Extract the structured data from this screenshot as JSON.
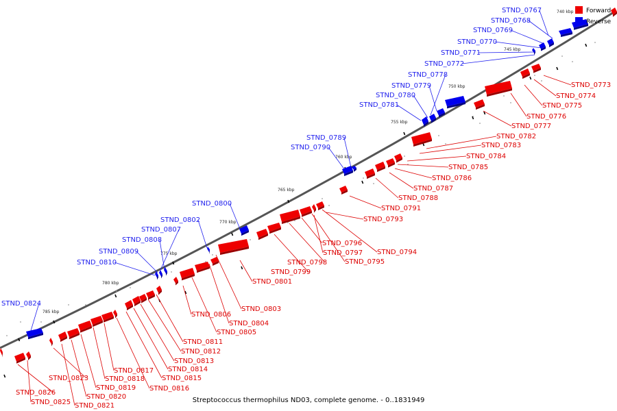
{
  "caption": "Streptococcus thermophilus ND03, complete genome. - 0..1831949",
  "legend": [
    {
      "label": "Forward",
      "color": "#ee0000"
    },
    {
      "label": "Reverse",
      "color": "#0000ee"
    }
  ],
  "scale_ticks": [
    "740 kbp",
    "745 kbp",
    "750 kbp",
    "755 kbp",
    "760 kbp",
    "765 kbp",
    "770 kbp",
    "775 kbp",
    "780 kbp",
    "785 kbp"
  ],
  "genes_reverse": [
    "STND_0767",
    "STND_0768",
    "STND_0769",
    "STND_0770",
    "STND_0771",
    "STND_0772",
    "STND_0778",
    "STND_0779",
    "STND_0780",
    "STND_0781",
    "STND_0789",
    "STND_0790",
    "STND_0800",
    "STND_0802",
    "STND_0807",
    "STND_0808",
    "STND_0809",
    "STND_0810",
    "STND_0824"
  ],
  "genes_forward": [
    "STND_0773",
    "STND_0774",
    "STND_0775",
    "STND_0776",
    "STND_0777",
    "STND_0782",
    "STND_0783",
    "STND_0784",
    "STND_0785",
    "STND_0786",
    "STND_0787",
    "STND_0788",
    "STND_0791",
    "STND_0793",
    "STND_0794",
    "STND_0795",
    "STND_0796",
    "STND_0797",
    "STND_0798",
    "STND_0799",
    "STND_0801",
    "STND_0803",
    "STND_0804",
    "STND_0805",
    "STND_0806",
    "STND_0811",
    "STND_0812",
    "STND_0813",
    "STND_0814",
    "STND_0815",
    "STND_0816",
    "STND_0817",
    "STND_0818",
    "STND_0819",
    "STND_0820",
    "STND_0821",
    "STND_0823",
    "STND_0825",
    "STND_0826"
  ]
}
